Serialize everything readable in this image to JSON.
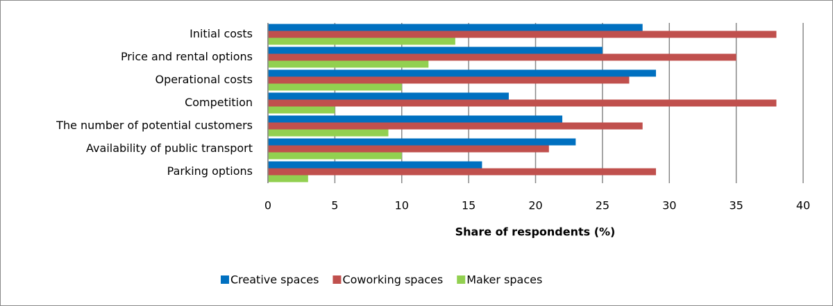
{
  "chart_data": {
    "type": "hbar",
    "categories": [
      "Initial costs",
      "Price and rental options",
      "Operational costs",
      "Competition",
      "The number of potential customers",
      "Availability of public transport",
      "Parking options"
    ],
    "series": [
      {
        "name": "Creative spaces",
        "color": "#0070c0",
        "values": [
          28,
          25,
          29,
          18,
          22,
          23,
          16
        ]
      },
      {
        "name": "Coworking spaces",
        "color": "#c0504d",
        "values": [
          38,
          35,
          27,
          38,
          28,
          21,
          29
        ]
      },
      {
        "name": "Maker spaces",
        "color": "#92d050",
        "values": [
          14,
          12,
          10,
          5,
          9,
          10,
          3
        ]
      }
    ],
    "xlabel": "Share of respondents (%)",
    "xlim": [
      0,
      40
    ],
    "xticks": [
      0,
      5,
      10,
      15,
      20,
      25,
      30,
      35,
      40
    ],
    "grid": true,
    "legend": "bottom"
  }
}
